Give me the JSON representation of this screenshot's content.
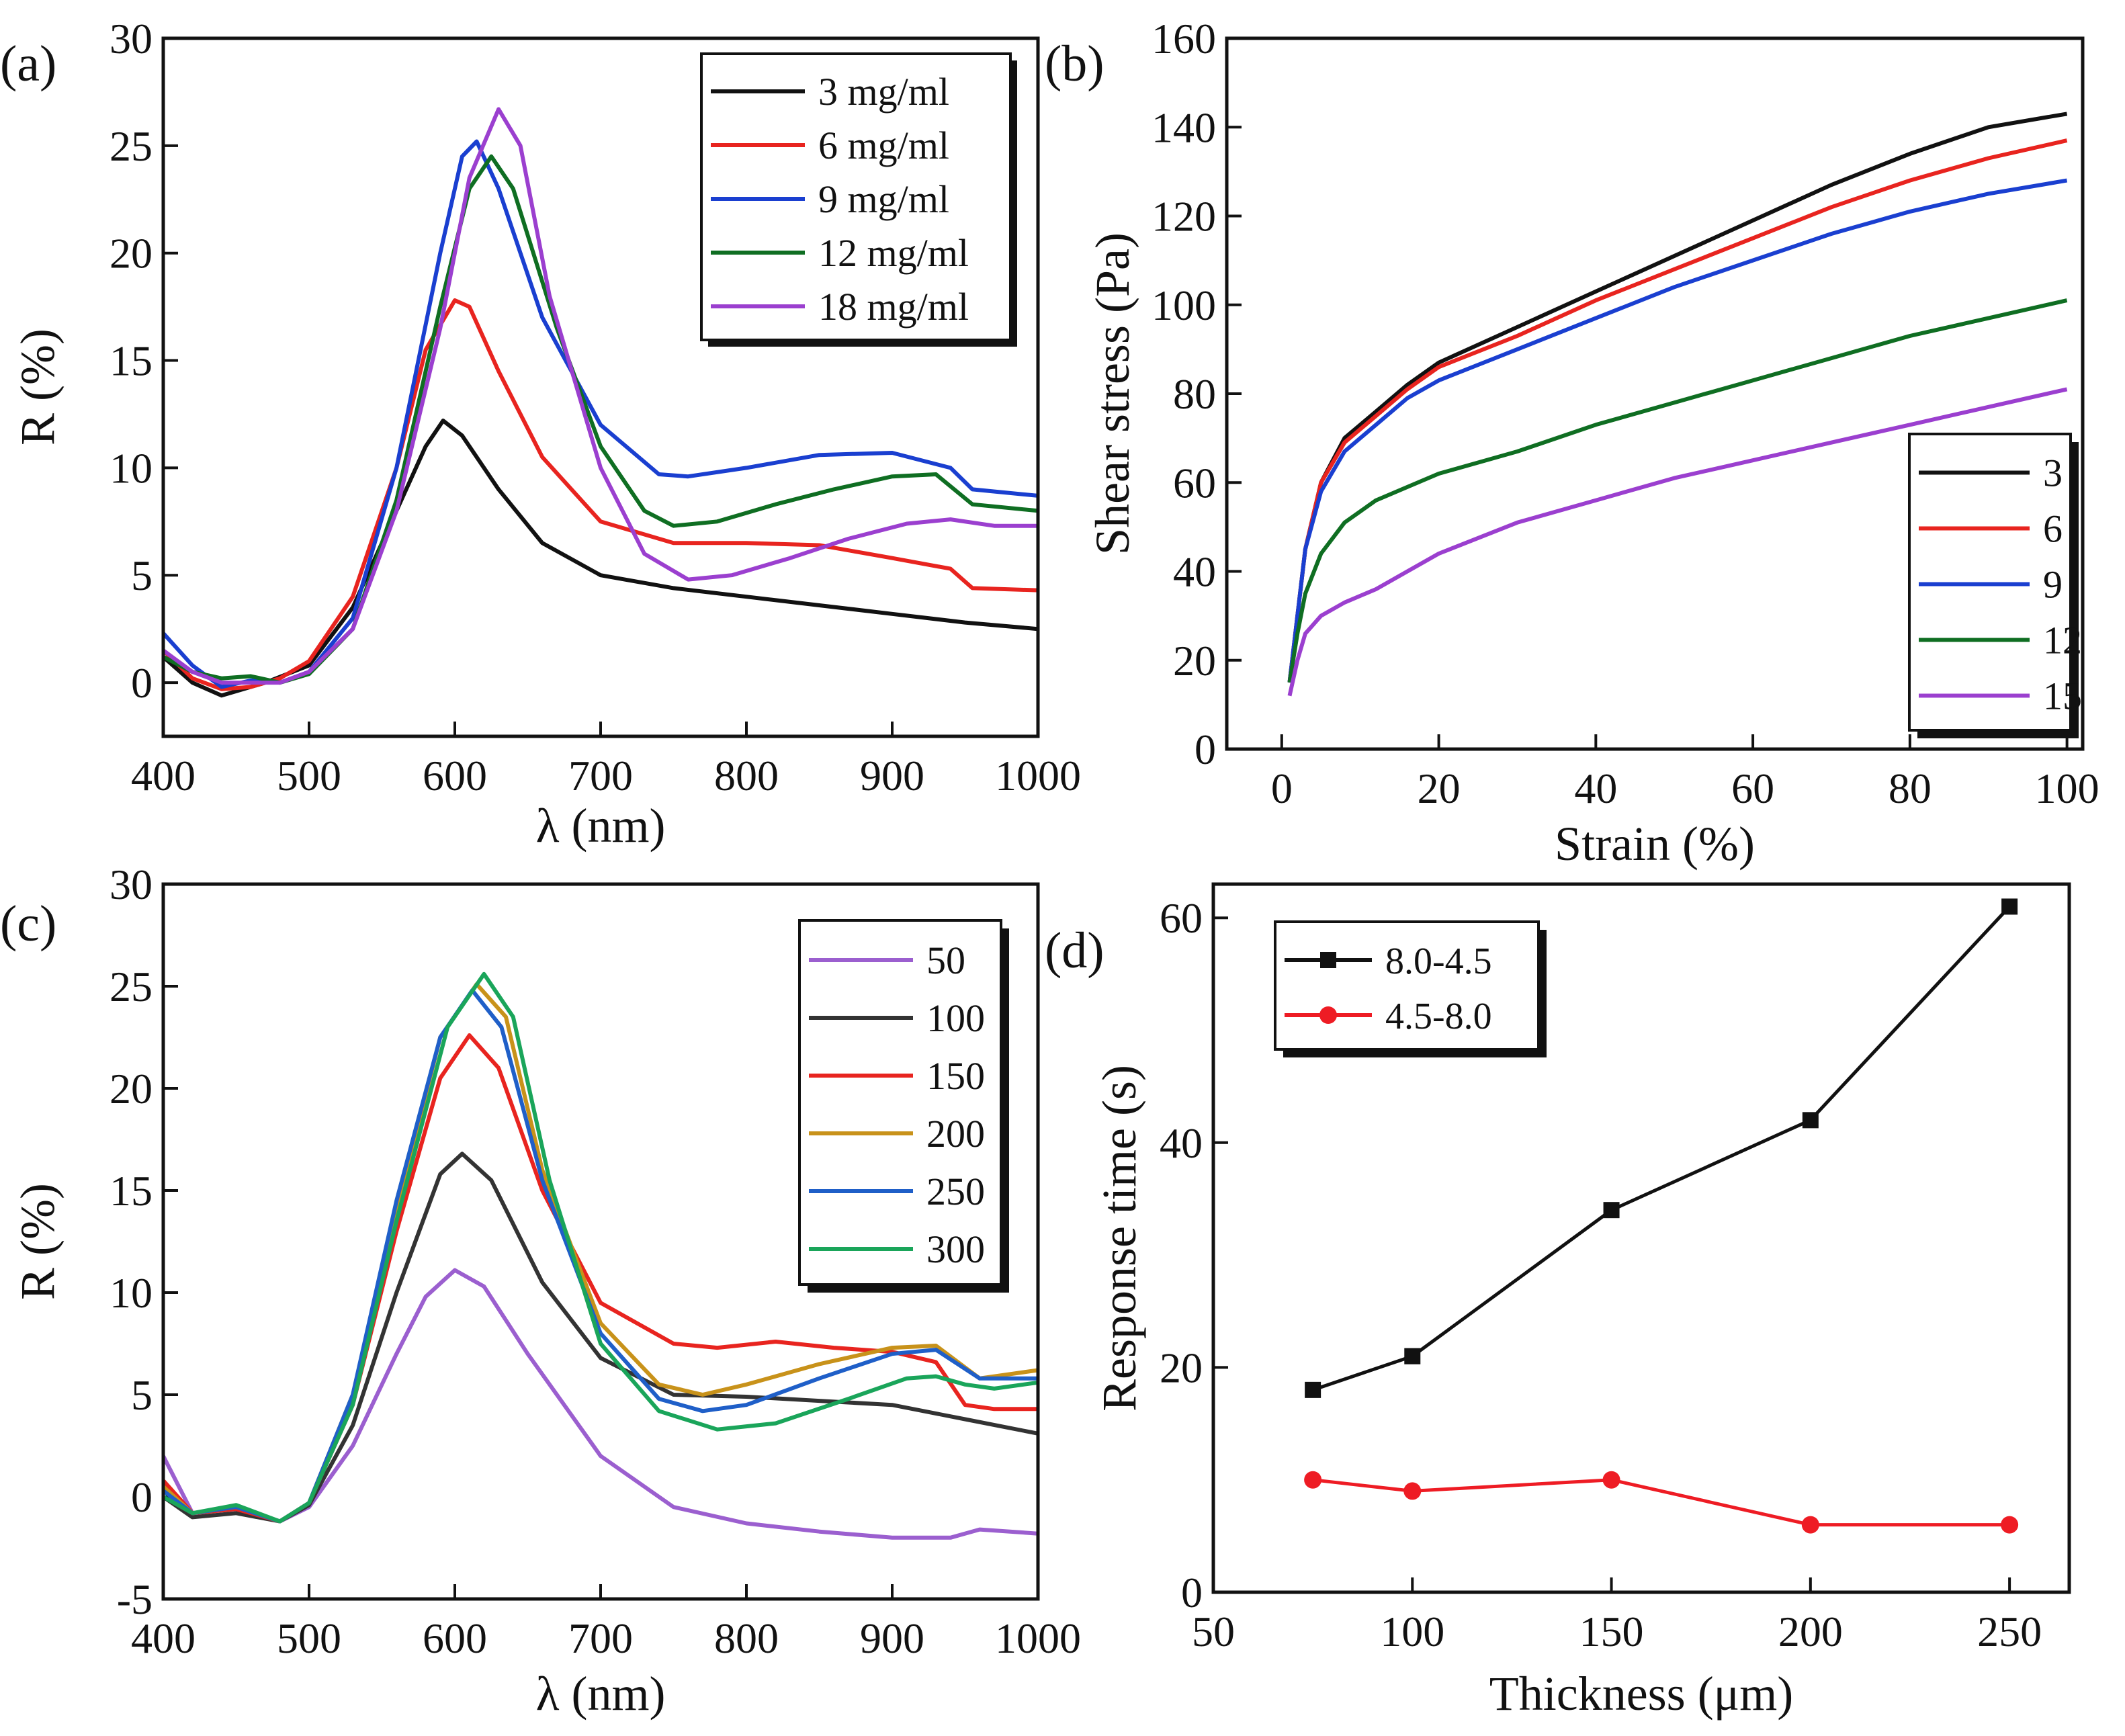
{
  "chart_data": [
    {
      "panel": "(a)",
      "type": "line",
      "xlabel": "λ (nm)",
      "ylabel": "R (%)",
      "xlim": [
        400,
        1000
      ],
      "ylim": [
        -2.5,
        30
      ],
      "xticks": [
        400,
        500,
        600,
        700,
        800,
        900,
        1000
      ],
      "yticks": [
        0,
        5,
        10,
        15,
        20,
        25,
        30
      ],
      "legend_position": "top-right",
      "series": [
        {
          "name": "3 mg/ml",
          "color": "#111111",
          "x": [
            400,
            420,
            440,
            450,
            470,
            500,
            530,
            560,
            580,
            592,
            605,
            630,
            660,
            700,
            750,
            800,
            850,
            900,
            950,
            1000
          ],
          "y": [
            1.2,
            0.0,
            -0.6,
            -0.4,
            0.0,
            0.8,
            3.5,
            8.0,
            11.0,
            12.2,
            11.5,
            9.0,
            6.5,
            5.0,
            4.4,
            4.0,
            3.6,
            3.2,
            2.8,
            2.5
          ]
        },
        {
          "name": "6 mg/ml",
          "color": "#e8241f",
          "x": [
            400,
            420,
            440,
            460,
            480,
            500,
            530,
            560,
            580,
            600,
            610,
            630,
            660,
            700,
            750,
            800,
            850,
            900,
            940,
            955,
            1000
          ],
          "y": [
            1.5,
            0.2,
            -0.3,
            -0.2,
            0.2,
            1.0,
            4.0,
            10.0,
            15.5,
            17.8,
            17.5,
            14.5,
            10.5,
            7.5,
            6.5,
            6.5,
            6.4,
            5.8,
            5.3,
            4.4,
            4.3
          ]
        },
        {
          "name": "9 mg/ml",
          "color": "#1a3fd0",
          "x": [
            400,
            420,
            440,
            460,
            480,
            500,
            530,
            560,
            590,
            605,
            615,
            630,
            660,
            700,
            740,
            760,
            800,
            850,
            900,
            940,
            955,
            1000
          ],
          "y": [
            2.3,
            0.8,
            -0.2,
            0.1,
            0.0,
            0.5,
            3.0,
            10.0,
            20.0,
            24.5,
            25.2,
            23.0,
            17.0,
            12.0,
            9.7,
            9.6,
            10.0,
            10.6,
            10.7,
            10.0,
            9.0,
            8.7
          ]
        },
        {
          "name": "12 mg/ml",
          "color": "#0f6e22",
          "x": [
            400,
            420,
            440,
            460,
            480,
            500,
            530,
            560,
            590,
            610,
            625,
            640,
            670,
            700,
            730,
            750,
            780,
            820,
            860,
            900,
            930,
            955,
            1000
          ],
          "y": [
            1.2,
            0.5,
            0.2,
            0.3,
            0.0,
            0.4,
            2.5,
            8.5,
            17.5,
            23.0,
            24.5,
            23.0,
            16.5,
            11.0,
            8.0,
            7.3,
            7.5,
            8.3,
            9.0,
            9.6,
            9.7,
            8.3,
            8.0
          ]
        },
        {
          "name": "18 mg/ml",
          "color": "#9b3fcf",
          "x": [
            400,
            420,
            440,
            460,
            480,
            500,
            530,
            560,
            590,
            610,
            630,
            645,
            665,
            700,
            730,
            760,
            790,
            830,
            870,
            910,
            940,
            970,
            1000
          ],
          "y": [
            1.5,
            0.5,
            0.0,
            0.0,
            0.0,
            0.5,
            2.5,
            8.0,
            16.5,
            23.5,
            26.7,
            25.0,
            18.0,
            10.0,
            6.0,
            4.8,
            5.0,
            5.8,
            6.7,
            7.4,
            7.6,
            7.3,
            7.3
          ]
        }
      ]
    },
    {
      "panel": "(b)",
      "type": "line",
      "xlabel": "Strain (%)",
      "ylabel": "Shear stress (Pa)",
      "xlim": [
        -7,
        102
      ],
      "ylim": [
        0,
        160
      ],
      "xticks": [
        0,
        20,
        40,
        60,
        80,
        100
      ],
      "yticks": [
        0,
        20,
        40,
        60,
        80,
        100,
        120,
        140,
        160
      ],
      "legend_position": "bottom-right",
      "series": [
        {
          "name": "3",
          "color": "#111111",
          "x": [
            1,
            2,
            3,
            5,
            8,
            12,
            16,
            20,
            30,
            40,
            50,
            60,
            70,
            80,
            90,
            100
          ],
          "y": [
            15,
            30,
            45,
            60,
            70,
            76,
            82,
            87,
            95,
            103,
            111,
            119,
            127,
            134,
            140,
            143
          ]
        },
        {
          "name": "6",
          "color": "#e8241f",
          "x": [
            1,
            2,
            3,
            5,
            8,
            12,
            16,
            20,
            30,
            40,
            50,
            60,
            70,
            80,
            90,
            100
          ],
          "y": [
            15,
            30,
            45,
            60,
            69,
            75,
            81,
            86,
            93,
            101,
            108,
            115,
            122,
            128,
            133,
            137
          ]
        },
        {
          "name": "9",
          "color": "#1a3fd0",
          "x": [
            1,
            2,
            3,
            5,
            8,
            12,
            16,
            20,
            30,
            40,
            50,
            60,
            70,
            80,
            90,
            100
          ],
          "y": [
            15,
            30,
            45,
            58,
            67,
            73,
            79,
            83,
            90,
            97,
            104,
            110,
            116,
            121,
            125,
            128
          ]
        },
        {
          "name": "12",
          "color": "#0f6e22",
          "x": [
            1,
            2,
            3,
            5,
            8,
            12,
            16,
            20,
            30,
            40,
            50,
            60,
            70,
            80,
            90,
            100
          ],
          "y": [
            15,
            26,
            35,
            44,
            51,
            56,
            59,
            62,
            67,
            73,
            78,
            83,
            88,
            93,
            97,
            101
          ]
        },
        {
          "name": "15",
          "color": "#9b3fcf",
          "x": [
            1,
            2,
            3,
            5,
            8,
            12,
            16,
            20,
            30,
            40,
            50,
            60,
            70,
            80,
            90,
            100
          ],
          "y": [
            12,
            20,
            26,
            30,
            33,
            36,
            40,
            44,
            51,
            56,
            61,
            65,
            69,
            73,
            77,
            81
          ]
        }
      ]
    },
    {
      "panel": "(c)",
      "type": "line",
      "xlabel": "λ (nm)",
      "ylabel": "R (%)",
      "xlim": [
        400,
        1000
      ],
      "ylim": [
        -5,
        30
      ],
      "xticks": [
        400,
        500,
        600,
        700,
        800,
        900,
        1000
      ],
      "yticks": [
        -5,
        0,
        5,
        10,
        15,
        20,
        25,
        30
      ],
      "legend_position": "top-right",
      "series": [
        {
          "name": "50",
          "color": "#9b5fcf",
          "x": [
            400,
            420,
            450,
            480,
            500,
            530,
            560,
            580,
            600,
            620,
            650,
            700,
            750,
            800,
            850,
            900,
            940,
            960,
            1000
          ],
          "y": [
            2.0,
            -0.8,
            -0.6,
            -1.2,
            -0.5,
            2.5,
            7.0,
            9.8,
            11.1,
            10.3,
            7.0,
            2.0,
            -0.5,
            -1.3,
            -1.7,
            -2.0,
            -2.0,
            -1.6,
            -1.8
          ]
        },
        {
          "name": "100",
          "color": "#333333",
          "x": [
            400,
            420,
            450,
            480,
            500,
            530,
            560,
            590,
            605,
            625,
            660,
            700,
            750,
            800,
            850,
            900,
            950,
            1000
          ],
          "y": [
            0.0,
            -1.0,
            -0.8,
            -1.2,
            -0.4,
            3.5,
            10.0,
            15.8,
            16.8,
            15.5,
            10.5,
            6.8,
            5.0,
            4.9,
            4.7,
            4.5,
            3.8,
            3.1
          ]
        },
        {
          "name": "150",
          "color": "#e8241f",
          "x": [
            400,
            420,
            450,
            480,
            500,
            530,
            560,
            590,
            610,
            630,
            660,
            700,
            750,
            780,
            820,
            860,
            900,
            930,
            950,
            970,
            1000
          ],
          "y": [
            0.8,
            -0.8,
            -0.6,
            -1.2,
            -0.3,
            4.5,
            13.0,
            20.5,
            22.6,
            21.0,
            15.0,
            9.5,
            7.5,
            7.3,
            7.6,
            7.3,
            7.1,
            6.6,
            4.5,
            4.3,
            4.3
          ]
        },
        {
          "name": "200",
          "color": "#c8921a",
          "x": [
            400,
            420,
            450,
            480,
            500,
            530,
            560,
            590,
            615,
            635,
            660,
            700,
            740,
            770,
            800,
            850,
            900,
            930,
            960,
            1000
          ],
          "y": [
            0.5,
            -0.8,
            -0.5,
            -1.2,
            -0.3,
            5.0,
            14.0,
            22.5,
            25.1,
            23.5,
            16.0,
            8.5,
            5.5,
            5.0,
            5.5,
            6.5,
            7.3,
            7.4,
            5.8,
            6.2
          ]
        },
        {
          "name": "250",
          "color": "#1f5fc8",
          "x": [
            400,
            420,
            450,
            480,
            500,
            530,
            560,
            590,
            612,
            632,
            660,
            700,
            740,
            770,
            800,
            850,
            900,
            930,
            960,
            1000
          ],
          "y": [
            0.3,
            -0.8,
            -0.5,
            -1.2,
            -0.3,
            5.0,
            14.5,
            22.5,
            24.8,
            23.0,
            15.5,
            8.0,
            4.8,
            4.2,
            4.5,
            5.8,
            7.0,
            7.2,
            5.8,
            5.8
          ]
        },
        {
          "name": "300",
          "color": "#1aa55a",
          "x": [
            400,
            420,
            450,
            480,
            500,
            530,
            560,
            595,
            620,
            640,
            665,
            700,
            740,
            780,
            820,
            870,
            910,
            930,
            950,
            970,
            1000
          ],
          "y": [
            0.0,
            -0.8,
            -0.4,
            -1.2,
            -0.3,
            4.5,
            13.5,
            23.0,
            25.6,
            23.5,
            15.5,
            7.5,
            4.2,
            3.3,
            3.6,
            4.8,
            5.8,
            5.9,
            5.5,
            5.3,
            5.6
          ]
        }
      ]
    },
    {
      "panel": "(d)",
      "type": "line",
      "xlabel": "Thickness (μm)",
      "ylabel": "Response time (s)",
      "xlim": [
        50,
        265
      ],
      "ylim": [
        0,
        63
      ],
      "xticks": [
        50,
        100,
        150,
        200,
        250
      ],
      "yticks": [
        0,
        20,
        40,
        60
      ],
      "legend_position": "top-left",
      "series": [
        {
          "name": "8.0-4.5",
          "color": "#111111",
          "marker": "square",
          "x": [
            75,
            100,
            150,
            200,
            250
          ],
          "y": [
            18,
            21,
            34,
            42,
            61
          ]
        },
        {
          "name": "4.5-8.0",
          "color": "#ee1c24",
          "marker": "circle",
          "x": [
            75,
            100,
            150,
            200,
            250
          ],
          "y": [
            10,
            9,
            10,
            6,
            6
          ]
        }
      ]
    }
  ]
}
